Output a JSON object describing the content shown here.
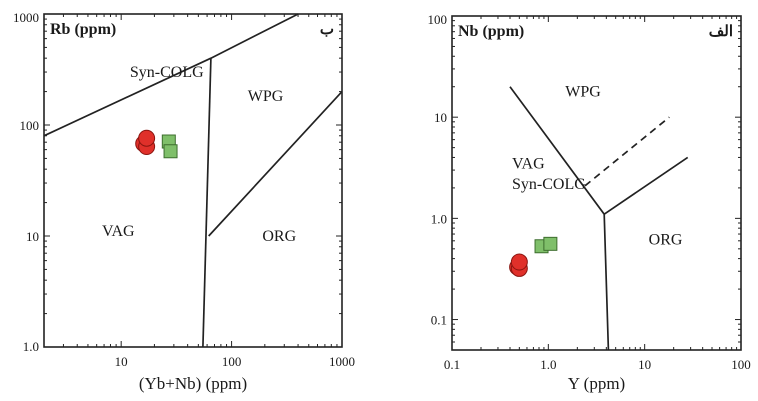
{
  "colors": {
    "circle_fill": "#e0302a",
    "circle_stroke": "#8a1510",
    "square_fill": "#7fbf6a",
    "square_stroke": "#3d6e2e",
    "line": "#222222"
  },
  "chart_data": [
    {
      "type": "scatter",
      "panel_label": "ب",
      "y_label": "Rb (ppm)",
      "x_label": "(Yb+Nb) (ppm)",
      "x_scale": "log",
      "y_scale": "log",
      "xlim": [
        2,
        1000
      ],
      "ylim": [
        1,
        1000
      ],
      "x_ticks": [
        {
          "value": 10,
          "label": "10"
        },
        {
          "value": 100,
          "label": "100"
        },
        {
          "value": 1000,
          "label": "1000"
        }
      ],
      "y_ticks": [
        {
          "value": 1,
          "label": "1.0"
        },
        {
          "value": 10,
          "label": "10"
        },
        {
          "value": 100,
          "label": "100"
        },
        {
          "value": 1000,
          "label": "1000"
        }
      ],
      "field_labels": [
        {
          "text": "Syn-COLG",
          "x": 12,
          "y": 270
        },
        {
          "text": "WPG",
          "x": 140,
          "y": 165
        },
        {
          "text": "VAG",
          "x": 6.7,
          "y": 10
        },
        {
          "text": "ORG",
          "x": 190,
          "y": 9
        }
      ],
      "boundaries": [
        [
          [
            2,
            80
          ],
          [
            65,
            400
          ],
          [
            400,
            1000
          ]
        ],
        [
          [
            65,
            400
          ],
          [
            55,
            1
          ]
        ],
        [
          [
            62,
            10
          ],
          [
            1000,
            200
          ]
        ]
      ],
      "series": [
        {
          "marker": "circle",
          "points": [
            [
              16,
              68
            ],
            [
              17,
              64
            ],
            [
              17,
              76
            ]
          ]
        },
        {
          "marker": "square",
          "points": [
            [
              27,
              71
            ],
            [
              28,
              58
            ]
          ]
        }
      ]
    },
    {
      "type": "scatter",
      "panel_label": "الف",
      "y_label": "Nb (ppm)",
      "x_label": "Y (ppm)",
      "x_scale": "log",
      "y_scale": "log",
      "xlim": [
        0.1,
        100
      ],
      "ylim": [
        0.05,
        100
      ],
      "x_ticks": [
        {
          "value": 0.1,
          "label": "0.1"
        },
        {
          "value": 1,
          "label": "1.0"
        },
        {
          "value": 10,
          "label": "10"
        },
        {
          "value": 100,
          "label": "100"
        }
      ],
      "y_ticks": [
        {
          "value": 0.1,
          "label": "0.1"
        },
        {
          "value": 1,
          "label": "1.0"
        },
        {
          "value": 10,
          "label": "10"
        },
        {
          "value": 100,
          "label": "100"
        }
      ],
      "field_labels": [
        {
          "text": "WPG",
          "x": 1.5,
          "y": 16
        },
        {
          "text": "VAG",
          "x": 0.42,
          "y": 3.1
        },
        {
          "text": "Syn-COLG",
          "x": 0.42,
          "y": 1.95
        },
        {
          "text": "ORG",
          "x": 11,
          "y": 0.55
        }
      ],
      "boundaries": [
        [
          [
            0.4,
            20
          ],
          [
            3.8,
            1.1
          ],
          [
            4.2,
            0.05
          ]
        ],
        [
          [
            3.8,
            1.1
          ],
          [
            28,
            4
          ]
        ]
      ],
      "dashed_boundaries": [
        [
          [
            2.4,
            2.1
          ],
          [
            18,
            10
          ]
        ]
      ],
      "series": [
        {
          "marker": "circle",
          "points": [
            [
              0.48,
              0.33
            ],
            [
              0.5,
              0.32
            ],
            [
              0.5,
              0.37
            ]
          ]
        },
        {
          "marker": "square",
          "points": [
            [
              0.85,
              0.53
            ],
            [
              1.05,
              0.56
            ]
          ]
        }
      ]
    }
  ]
}
